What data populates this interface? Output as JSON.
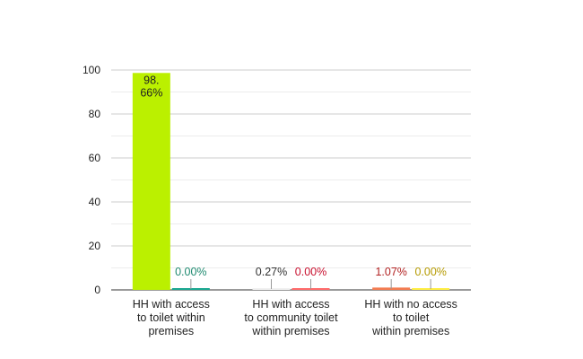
{
  "chart_data": {
    "type": "bar",
    "categories": [
      [
        "HH with access",
        "to toilet within",
        "premises"
      ],
      [
        "HH with access",
        "to community toilet",
        "within premises"
      ],
      [
        "HH with no access",
        "to toilet",
        "within premises"
      ]
    ],
    "series": [
      {
        "values": [
          98.66,
          0.27,
          1.07
        ],
        "labels": [
          [
            "98.",
            "66%"
          ],
          [
            "0.27%"
          ],
          [
            "1.07%"
          ]
        ],
        "colors": [
          "#bbf000",
          "#f0f0f0",
          "#f47b50"
        ],
        "label_colors": [
          "#222222",
          "#333333",
          "#b22222"
        ]
      },
      {
        "values": [
          0.0,
          0.0,
          0.0
        ],
        "labels": [
          [
            "0.00%"
          ],
          [
            "0.00%"
          ],
          [
            "0.00%"
          ]
        ],
        "colors": [
          "#1aa890",
          "#ff6b6b",
          "#ffee44"
        ],
        "label_colors": [
          "#1f8a70",
          "#c8102e",
          "#b59a00"
        ]
      }
    ],
    "ylim": [
      0,
      100
    ],
    "yticks": [
      0,
      20,
      40,
      60,
      80,
      100
    ],
    "grid": true,
    "minor_grid": true,
    "legend": "none",
    "title": "",
    "xlabel": "",
    "ylabel": ""
  }
}
